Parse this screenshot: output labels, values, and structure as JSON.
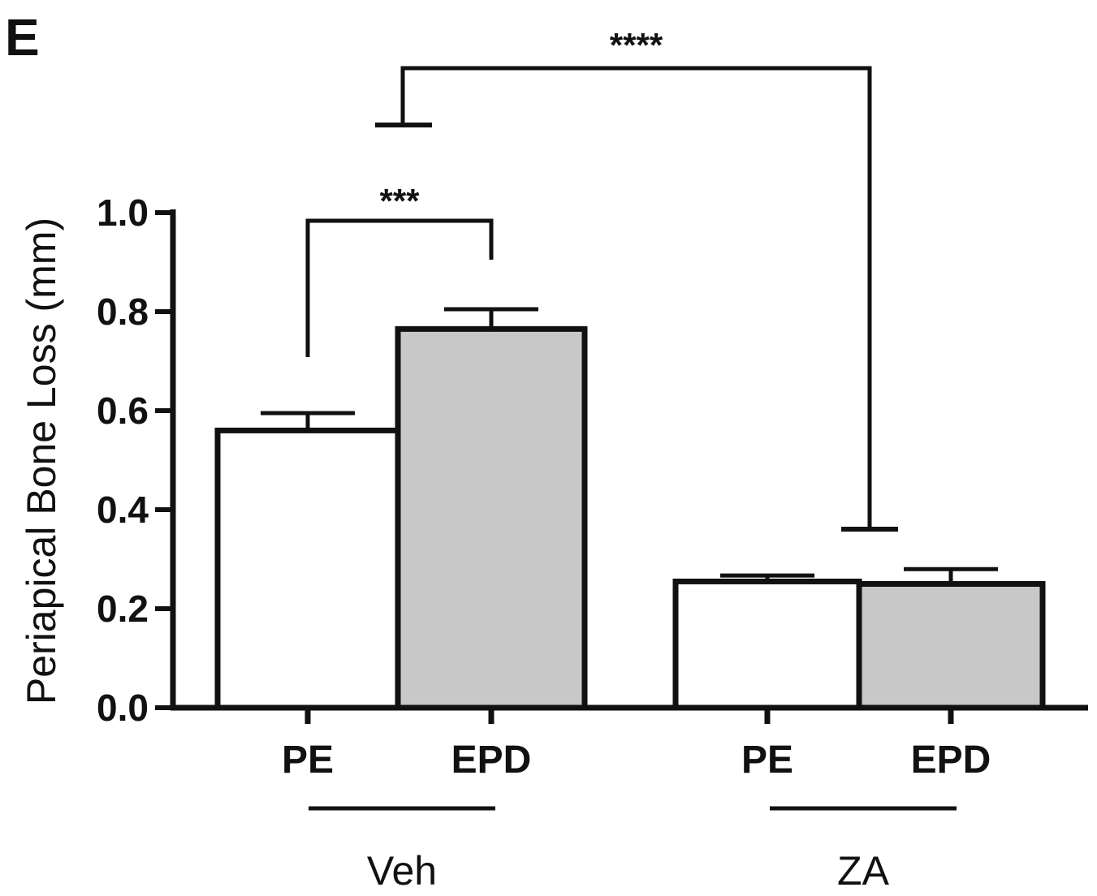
{
  "panel_label": "E",
  "chart_data": {
    "type": "bar",
    "xlabel": "",
    "ylabel": "Periapical Bone Loss (mm)",
    "ylim": [
      0,
      1.0
    ],
    "yticks": [
      "0.0",
      "0.2",
      "0.4",
      "0.6",
      "0.8",
      "1.0"
    ],
    "grid": false,
    "groups": [
      {
        "name": "Veh",
        "categories": [
          "PE",
          "EPD"
        ]
      },
      {
        "name": "ZA",
        "categories": [
          "PE",
          "EPD"
        ]
      }
    ],
    "bars": [
      {
        "group": "Veh",
        "category": "PE",
        "value": 0.56,
        "error": 0.035,
        "fill": "#ffffff"
      },
      {
        "group": "Veh",
        "category": "EPD",
        "value": 0.765,
        "error": 0.04,
        "fill": "#c8c8c8"
      },
      {
        "group": "ZA",
        "category": "PE",
        "value": 0.255,
        "error": 0.012,
        "fill": "#ffffff"
      },
      {
        "group": "ZA",
        "category": "EPD",
        "value": 0.25,
        "error": 0.03,
        "fill": "#c8c8c8"
      }
    ],
    "annotations": [
      {
        "label": "***",
        "from": "Veh PE",
        "to": "Veh EPD"
      },
      {
        "label": "****",
        "from": "Veh",
        "to": "ZA"
      }
    ]
  }
}
